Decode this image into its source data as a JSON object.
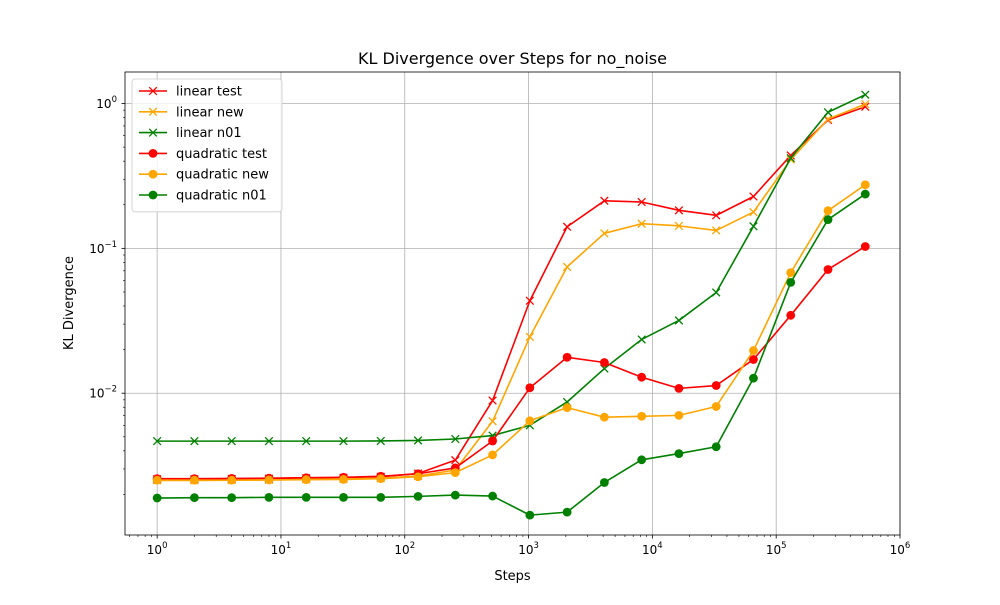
{
  "chart_data": {
    "type": "line",
    "title": "KL Divergence over Steps for no_noise",
    "xlabel": "Steps",
    "ylabel": "KL Divergence",
    "xscale": "log",
    "yscale": "log",
    "xlim": [
      0.55,
      1000000
    ],
    "ylim": [
      0.00105,
      1.65
    ],
    "grid": true,
    "legend_position": "top-left",
    "x_ticks": [
      {
        "value": 1,
        "base": "10",
        "exp": "0"
      },
      {
        "value": 10,
        "base": "10",
        "exp": "1"
      },
      {
        "value": 100,
        "base": "10",
        "exp": "2"
      },
      {
        "value": 1000,
        "base": "10",
        "exp": "3"
      },
      {
        "value": 10000,
        "base": "10",
        "exp": "4"
      },
      {
        "value": 100000,
        "base": "10",
        "exp": "5"
      },
      {
        "value": 1000000,
        "base": "10",
        "exp": "6"
      }
    ],
    "y_ticks": [
      {
        "value": 0.01,
        "base": "10",
        "exp": "−2"
      },
      {
        "value": 0.1,
        "base": "10",
        "exp": "−1"
      },
      {
        "value": 1,
        "base": "10",
        "exp": "0"
      }
    ],
    "x": [
      1,
      2,
      4,
      8,
      16,
      32,
      64,
      128,
      256,
      512,
      1024,
      2048,
      4096,
      8192,
      16384,
      32768,
      65536,
      131072,
      262144,
      524288
    ],
    "series": [
      {
        "name": "linear test",
        "color": "#ff0000",
        "marker": "x",
        "values": [
          0.00255,
          0.00255,
          0.00256,
          0.00257,
          0.00259,
          0.00261,
          0.00265,
          0.00279,
          0.00345,
          0.0089,
          0.0435,
          0.141,
          0.213,
          0.209,
          0.183,
          0.169,
          0.228,
          0.438,
          0.77,
          0.95
        ]
      },
      {
        "name": "linear new",
        "color": "#ffa500",
        "marker": "x",
        "values": [
          0.0025,
          0.0025,
          0.00251,
          0.00252,
          0.00254,
          0.00256,
          0.00259,
          0.00268,
          0.00295,
          0.0064,
          0.0245,
          0.0745,
          0.127,
          0.148,
          0.143,
          0.133,
          0.178,
          0.41,
          0.78,
          0.99
        ]
      },
      {
        "name": "linear n01",
        "color": "#008000",
        "marker": "x",
        "values": [
          0.00467,
          0.00467,
          0.00467,
          0.00467,
          0.00467,
          0.00467,
          0.00468,
          0.00472,
          0.00483,
          0.0051,
          0.006,
          0.0087,
          0.0148,
          0.0235,
          0.0318,
          0.0496,
          0.142,
          0.42,
          0.87,
          1.15
        ]
      },
      {
        "name": "quadratic test",
        "color": "#ff0000",
        "marker": "o",
        "values": [
          0.00257,
          0.00257,
          0.00258,
          0.00259,
          0.00261,
          0.00263,
          0.00267,
          0.00278,
          0.00305,
          0.00468,
          0.0109,
          0.0177,
          0.0163,
          0.0129,
          0.0108,
          0.0113,
          0.0171,
          0.0345,
          0.0715,
          0.103
        ]
      },
      {
        "name": "quadratic new",
        "color": "#ffa500",
        "marker": "o",
        "values": [
          0.00251,
          0.00251,
          0.00251,
          0.00252,
          0.00253,
          0.00254,
          0.00257,
          0.00265,
          0.00283,
          0.00375,
          0.00645,
          0.00795,
          0.00683,
          0.00693,
          0.00703,
          0.0081,
          0.0197,
          0.068,
          0.182,
          0.275
        ]
      },
      {
        "name": "quadratic n01",
        "color": "#008000",
        "marker": "o",
        "values": [
          0.00189,
          0.0019,
          0.0019,
          0.00191,
          0.00191,
          0.00191,
          0.00191,
          0.00194,
          0.00198,
          0.00195,
          0.00144,
          0.00151,
          0.00242,
          0.00347,
          0.00383,
          0.00427,
          0.0127,
          0.0582,
          0.158,
          0.237
        ]
      }
    ]
  }
}
